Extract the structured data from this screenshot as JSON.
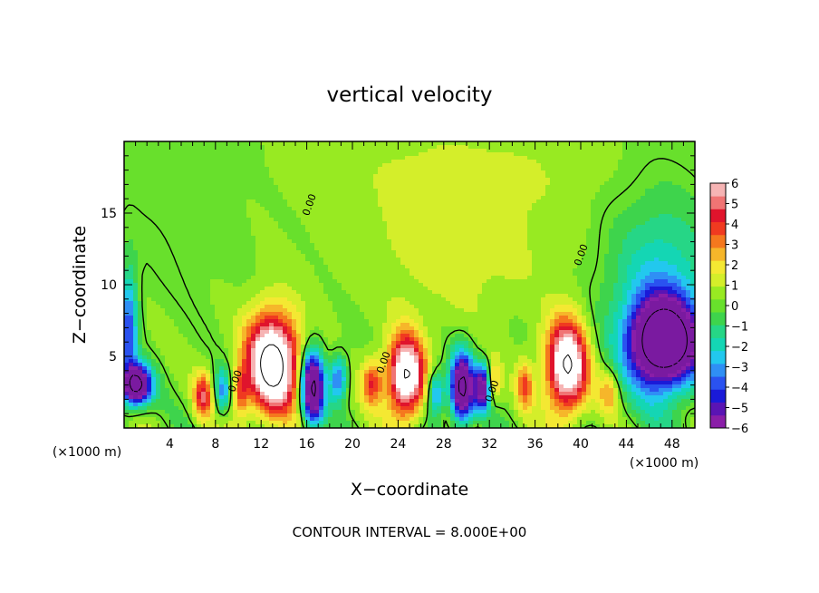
{
  "chart_data": {
    "type": "heatmap",
    "title": "vertical velocity",
    "xlabel": "X−coordinate",
    "ylabel": "Z−coordinate",
    "x_unit_left": "(×1000 m)",
    "x_unit_right": "(×1000 m)",
    "footer": "CONTOUR INTERVAL = 8.000E+00",
    "xlim": [
      0,
      50
    ],
    "ylim": [
      0,
      20
    ],
    "x_ticks": [
      4,
      8,
      12,
      16,
      20,
      24,
      28,
      32,
      36,
      40,
      44,
      48
    ],
    "y_ticks": [
      5,
      10,
      15
    ],
    "colorbar": {
      "min": -6,
      "max": 6,
      "ticks": [
        6,
        5,
        4,
        3,
        2,
        1,
        0,
        -1,
        -2,
        -3,
        -4,
        -5,
        -6
      ],
      "tick_labels": [
        "6",
        "5",
        "4",
        "3",
        "2",
        "1",
        "0",
        "−1",
        "−2",
        "−3",
        "−4",
        "−5",
        "−6"
      ],
      "colors": [
        "#8a1ea8",
        "#5a14b4",
        "#1a1ad8",
        "#2a52f0",
        "#2f8ff5",
        "#22c8ee",
        "#14d6b4",
        "#26d686",
        "#3ed44c",
        "#68e02c",
        "#98ea22",
        "#d4ee2a",
        "#f4e832",
        "#f6b62a",
        "#f5781e",
        "#f03a20",
        "#e0142c",
        "#f07474",
        "#f6b4b4"
      ]
    },
    "contour_labels": [
      {
        "text": "0.00",
        "x": 10.0,
        "z": 3.2
      },
      {
        "text": "0.00",
        "x": 23.0,
        "z": 4.5
      },
      {
        "text": "0.00",
        "x": 32.5,
        "z": 2.5
      },
      {
        "text": "0.00",
        "x": 16.5,
        "z": 15.5
      },
      {
        "text": "0.00",
        "x": 40.3,
        "z": 12.0
      }
    ],
    "features": [
      {
        "x": 13.0,
        "z": 4.5,
        "value": 9.0,
        "rx": 2.3,
        "rz": 3.4
      },
      {
        "x": 24.7,
        "z": 3.6,
        "value": 8.0,
        "rx": 1.6,
        "rz": 2.8
      },
      {
        "x": 38.8,
        "z": 4.3,
        "value": 8.0,
        "rx": 1.8,
        "rz": 3.2
      },
      {
        "x": 21.7,
        "z": 3.2,
        "value": 3.5,
        "rx": 0.9,
        "rz": 1.6
      },
      {
        "x": 6.9,
        "z": 2.2,
        "value": 4.0,
        "rx": 0.8,
        "rz": 1.6
      },
      {
        "x": 10.2,
        "z": 2.5,
        "value": 3.0,
        "rx": 0.7,
        "rz": 1.6
      },
      {
        "x": 35.1,
        "z": 3.0,
        "value": 3.0,
        "rx": 0.7,
        "rz": 1.7
      },
      {
        "x": 42.5,
        "z": 2.5,
        "value": 2.5,
        "rx": 0.9,
        "rz": 1.6
      },
      {
        "x": 32.4,
        "z": 3.2,
        "value": 2.5,
        "rx": 0.6,
        "rz": 1.4
      },
      {
        "x": 16.5,
        "z": 2.8,
        "value": -9.0,
        "rx": 1.0,
        "rz": 2.6
      },
      {
        "x": 29.6,
        "z": 2.8,
        "value": -9.0,
        "rx": 1.0,
        "rz": 2.4
      },
      {
        "x": 18.8,
        "z": 3.5,
        "value": -4.0,
        "rx": 0.8,
        "rz": 1.6
      },
      {
        "x": 31.4,
        "z": 2.8,
        "value": -6.5,
        "rx": 0.7,
        "rz": 1.6
      },
      {
        "x": 27.3,
        "z": 2.4,
        "value": -4.0,
        "rx": 0.8,
        "rz": 1.6
      },
      {
        "x": 8.6,
        "z": 2.6,
        "value": -3.5,
        "rx": 0.7,
        "rz": 1.6
      },
      {
        "x": 1.1,
        "z": 3.0,
        "value": -9.0,
        "rx": 1.3,
        "rz": 1.4
      },
      {
        "x": 0.4,
        "z": 7.0,
        "value": -4.0,
        "rx": 0.8,
        "rz": 4.0
      },
      {
        "x": 47.3,
        "z": 6.0,
        "value": -10.0,
        "rx": 2.8,
        "rz": 2.8
      },
      {
        "x": 47.0,
        "z": 8.5,
        "value": -3.0,
        "rx": 4.5,
        "rz": 7.0
      },
      {
        "x": 29.0,
        "z": 13.0,
        "value": 1.2,
        "rx": 8.0,
        "rz": 5.0
      },
      {
        "x": 30.0,
        "z": 18.0,
        "value": 0.6,
        "rx": 12.0,
        "rz": 3.0
      },
      {
        "x": 4.0,
        "z": 14.0,
        "value": -0.3,
        "rx": 6.0,
        "rz": 6.0
      }
    ]
  }
}
